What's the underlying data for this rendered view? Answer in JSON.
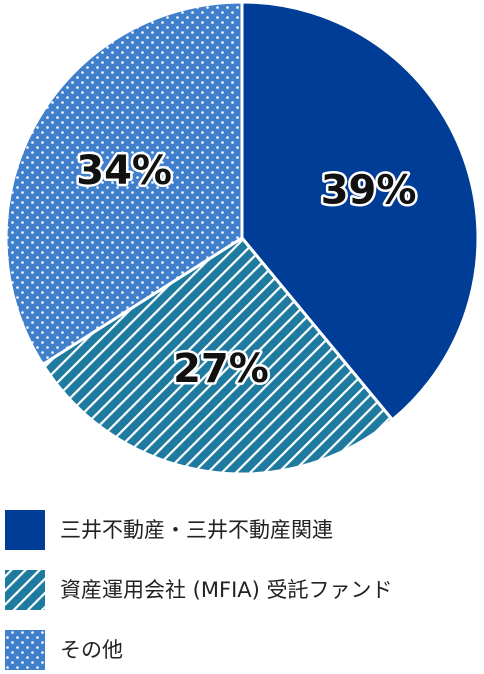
{
  "chart_data": {
    "type": "pie",
    "categories": [
      "三井不動産・三井不動産関連",
      "資産運用会社 (MFIA) 受託ファンド",
      "その他"
    ],
    "values": [
      39,
      27,
      34
    ],
    "value_labels": [
      "39%",
      "27%",
      "34%"
    ],
    "colors": [
      "#003d96",
      "#1f7aa0",
      "#3f7fcc"
    ],
    "patterns": [
      "solid",
      "stripes",
      "dots"
    ]
  }
}
